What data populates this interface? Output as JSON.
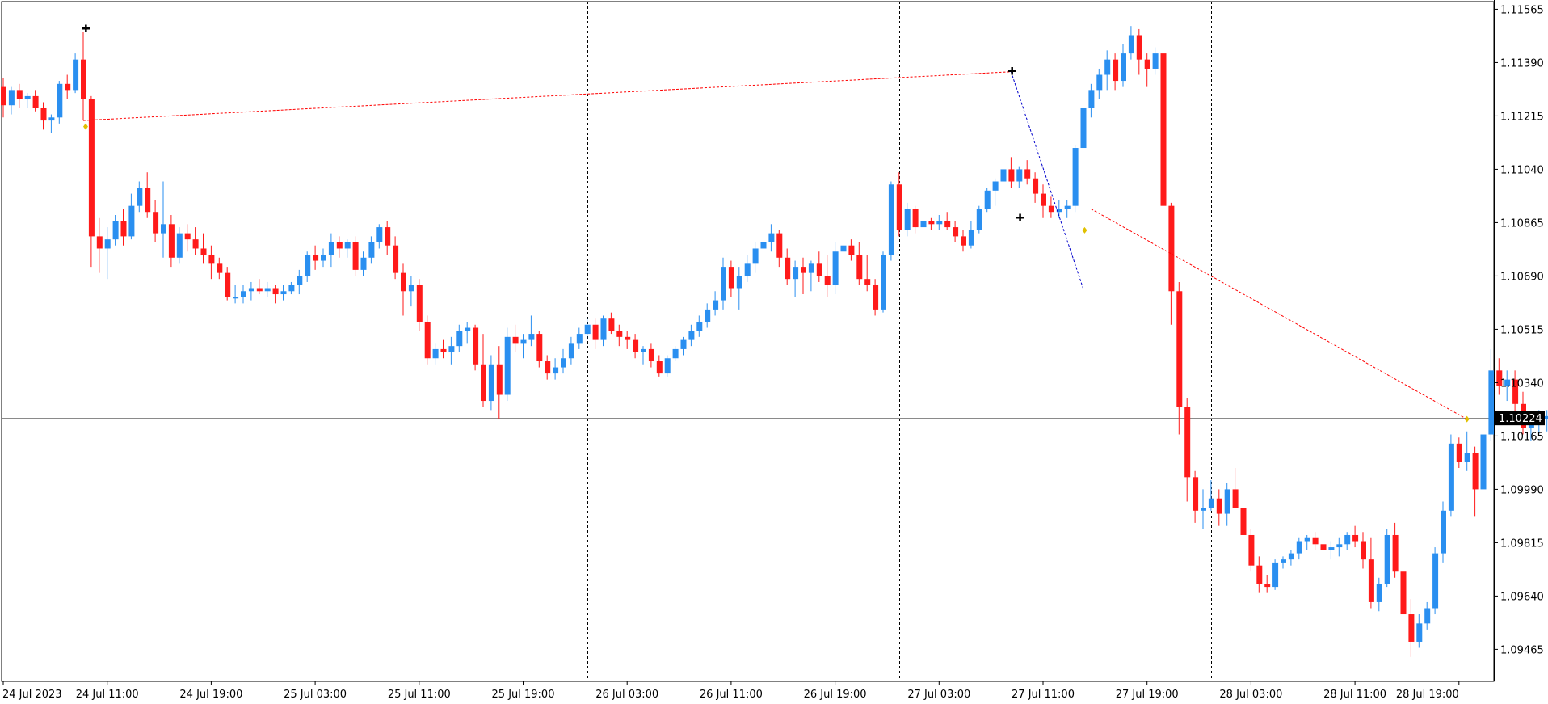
{
  "chart_data": {
    "type": "candlestick",
    "symbol_price_current": "1.10224",
    "ylim": [
      1.0936,
      1.1159
    ],
    "y_ticks": [
      "1.11565",
      "1.11390",
      "1.11215",
      "1.11040",
      "1.10865",
      "1.10690",
      "1.10515",
      "1.10340",
      "1.10165",
      "1.09990",
      "1.09815",
      "1.09640",
      "1.09465"
    ],
    "x_ticks": [
      "24 Jul 2023",
      "24 Jul 11:00",
      "24 Jul 19:00",
      "25 Jul 03:00",
      "25 Jul 11:00",
      "25 Jul 19:00",
      "26 Jul 03:00",
      "26 Jul 11:00",
      "26 Jul 19:00",
      "27 Jul 03:00",
      "27 Jul 11:00",
      "27 Jul 19:00",
      "28 Jul 03:00",
      "28 Jul 11:00",
      "28 Jul 19:00"
    ],
    "x_tick_index": [
      0,
      13,
      26,
      39,
      52,
      65,
      78,
      91,
      104,
      117,
      130,
      143,
      156,
      169,
      182
    ],
    "day_separators_index": [
      34,
      73,
      112,
      151
    ],
    "current_price": 1.10224,
    "colors": {
      "bull": "#2a8ff0",
      "bear": "#ff1a1a",
      "grid": "#000000",
      "trend_red": "#ff0000",
      "trend_blue": "#0000cc",
      "marker_yellow": "#e0c000",
      "price_label_bg": "#000000",
      "price_label_fg": "#ffffff"
    },
    "candles": [
      [
        1.1131,
        1.1134,
        1.1121,
        1.1125
      ],
      [
        1.1125,
        1.1131,
        1.1122,
        1.113
      ],
      [
        1.113,
        1.1132,
        1.1124,
        1.1127
      ],
      [
        1.1127,
        1.1129,
        1.1124,
        1.1128
      ],
      [
        1.1128,
        1.113,
        1.1123,
        1.1124
      ],
      [
        1.1124,
        1.1126,
        1.1117,
        1.112
      ],
      [
        1.112,
        1.1122,
        1.1116,
        1.1121
      ],
      [
        1.1121,
        1.1133,
        1.1119,
        1.1132
      ],
      [
        1.1132,
        1.1135,
        1.1127,
        1.113
      ],
      [
        1.113,
        1.1142,
        1.1129,
        1.114
      ],
      [
        1.114,
        1.1149,
        1.112,
        1.1127
      ],
      [
        1.1127,
        1.1128,
        1.1072,
        1.1082
      ],
      [
        1.1082,
        1.1088,
        1.107,
        1.1078
      ],
      [
        1.1078,
        1.1085,
        1.1068,
        1.1081
      ],
      [
        1.1081,
        1.1089,
        1.1079,
        1.1087
      ],
      [
        1.1087,
        1.1091,
        1.1079,
        1.1082
      ],
      [
        1.1082,
        1.1096,
        1.1081,
        1.1092
      ],
      [
        1.1092,
        1.11,
        1.109,
        1.1098
      ],
      [
        1.1098,
        1.1103,
        1.1088,
        1.109
      ],
      [
        1.109,
        1.1094,
        1.108,
        1.1083
      ],
      [
        1.1083,
        1.11,
        1.1075,
        1.1086
      ],
      [
        1.1086,
        1.1089,
        1.1072,
        1.1075
      ],
      [
        1.1075,
        1.1085,
        1.1073,
        1.1083
      ],
      [
        1.1083,
        1.1086,
        1.1077,
        1.1081
      ],
      [
        1.1081,
        1.1085,
        1.1076,
        1.1078
      ],
      [
        1.1078,
        1.1083,
        1.1073,
        1.1076
      ],
      [
        1.1076,
        1.1079,
        1.1068,
        1.1073
      ],
      [
        1.1073,
        1.1075,
        1.1068,
        1.107
      ],
      [
        1.107,
        1.1072,
        1.1061,
        1.1062
      ],
      [
        1.1062,
        1.1066,
        1.106,
        1.1062
      ],
      [
        1.1062,
        1.1066,
        1.106,
        1.1064
      ],
      [
        1.1064,
        1.1067,
        1.1061,
        1.1065
      ],
      [
        1.1065,
        1.1068,
        1.1063,
        1.1064
      ],
      [
        1.1064,
        1.1067,
        1.1062,
        1.1065
      ],
      [
        1.1065,
        1.1066,
        1.106,
        1.1063
      ],
      [
        1.1063,
        1.1066,
        1.1061,
        1.1064
      ],
      [
        1.1064,
        1.1067,
        1.1063,
        1.1066
      ],
      [
        1.1066,
        1.1071,
        1.1063,
        1.1069
      ],
      [
        1.1069,
        1.1077,
        1.1067,
        1.1076
      ],
      [
        1.1076,
        1.1079,
        1.1071,
        1.1074
      ],
      [
        1.1074,
        1.1078,
        1.1072,
        1.1076
      ],
      [
        1.1076,
        1.1083,
        1.1072,
        1.108
      ],
      [
        1.108,
        1.1082,
        1.1075,
        1.1078
      ],
      [
        1.1078,
        1.1081,
        1.1075,
        1.108
      ],
      [
        1.108,
        1.1082,
        1.1069,
        1.1071
      ],
      [
        1.1071,
        1.1077,
        1.1069,
        1.1075
      ],
      [
        1.1075,
        1.1082,
        1.1073,
        1.108
      ],
      [
        1.108,
        1.1086,
        1.1078,
        1.1085
      ],
      [
        1.1085,
        1.1087,
        1.1076,
        1.1079
      ],
      [
        1.1079,
        1.1082,
        1.1068,
        1.107
      ],
      [
        1.107,
        1.1073,
        1.1056,
        1.1064
      ],
      [
        1.1064,
        1.1069,
        1.1059,
        1.1066
      ],
      [
        1.1066,
        1.1068,
        1.1051,
        1.1054
      ],
      [
        1.1054,
        1.1056,
        1.104,
        1.1042
      ],
      [
        1.1042,
        1.1047,
        1.104,
        1.1045
      ],
      [
        1.1045,
        1.1048,
        1.1042,
        1.1044
      ],
      [
        1.1044,
        1.1049,
        1.104,
        1.1046
      ],
      [
        1.1046,
        1.1053,
        1.1044,
        1.1051
      ],
      [
        1.1051,
        1.1054,
        1.1047,
        1.1052
      ],
      [
        1.1052,
        1.1053,
        1.1038,
        1.104
      ],
      [
        1.104,
        1.105,
        1.1026,
        1.1028
      ],
      [
        1.1028,
        1.1043,
        1.1025,
        1.104
      ],
      [
        1.104,
        1.1046,
        1.1022,
        1.103
      ],
      [
        1.103,
        1.1052,
        1.1028,
        1.1049
      ],
      [
        1.1049,
        1.1053,
        1.1044,
        1.1047
      ],
      [
        1.1047,
        1.105,
        1.1042,
        1.1048
      ],
      [
        1.1048,
        1.1056,
        1.1046,
        1.105
      ],
      [
        1.105,
        1.1051,
        1.1039,
        1.1041
      ],
      [
        1.1041,
        1.1043,
        1.1035,
        1.1037
      ],
      [
        1.1037,
        1.1042,
        1.1035,
        1.1039
      ],
      [
        1.1039,
        1.1045,
        1.1037,
        1.1042
      ],
      [
        1.1042,
        1.1049,
        1.104,
        1.1047
      ],
      [
        1.1047,
        1.1052,
        1.1045,
        1.105
      ],
      [
        1.105,
        1.1055,
        1.1048,
        1.1053
      ],
      [
        1.1053,
        1.1055,
        1.1045,
        1.1048
      ],
      [
        1.1048,
        1.1056,
        1.1046,
        1.1055
      ],
      [
        1.1055,
        1.1057,
        1.105,
        1.1051
      ],
      [
        1.1051,
        1.1053,
        1.1046,
        1.1049
      ],
      [
        1.1049,
        1.1051,
        1.1045,
        1.1048
      ],
      [
        1.1048,
        1.105,
        1.1042,
        1.1044
      ],
      [
        1.1044,
        1.1046,
        1.104,
        1.1045
      ],
      [
        1.1045,
        1.1047,
        1.1039,
        1.1041
      ],
      [
        1.1041,
        1.1043,
        1.1036,
        1.1037
      ],
      [
        1.1037,
        1.1043,
        1.1036,
        1.1042
      ],
      [
        1.1042,
        1.1046,
        1.1041,
        1.1045
      ],
      [
        1.1045,
        1.1049,
        1.1043,
        1.1048
      ],
      [
        1.1048,
        1.1053,
        1.1046,
        1.1051
      ],
      [
        1.1051,
        1.1056,
        1.1049,
        1.1054
      ],
      [
        1.1054,
        1.106,
        1.1052,
        1.1058
      ],
      [
        1.1058,
        1.1064,
        1.1056,
        1.1061
      ],
      [
        1.1061,
        1.1075,
        1.1058,
        1.1072
      ],
      [
        1.1072,
        1.1074,
        1.1062,
        1.1065
      ],
      [
        1.1065,
        1.1072,
        1.1058,
        1.1069
      ],
      [
        1.1069,
        1.1076,
        1.1067,
        1.1073
      ],
      [
        1.1073,
        1.108,
        1.107,
        1.1078
      ],
      [
        1.1078,
        1.1081,
        1.1074,
        1.108
      ],
      [
        1.108,
        1.1086,
        1.1077,
        1.1083
      ],
      [
        1.1083,
        1.1084,
        1.1072,
        1.1075
      ],
      [
        1.1075,
        1.1078,
        1.1066,
        1.1068
      ],
      [
        1.1068,
        1.1074,
        1.1062,
        1.1072
      ],
      [
        1.1072,
        1.1075,
        1.1063,
        1.107
      ],
      [
        1.107,
        1.1074,
        1.1064,
        1.1073
      ],
      [
        1.1073,
        1.1077,
        1.1067,
        1.1069
      ],
      [
        1.1069,
        1.1076,
        1.1062,
        1.1066
      ],
      [
        1.1066,
        1.108,
        1.1063,
        1.1077
      ],
      [
        1.1077,
        1.1082,
        1.1074,
        1.1079
      ],
      [
        1.1079,
        1.1081,
        1.1074,
        1.1076
      ],
      [
        1.1076,
        1.108,
        1.1066,
        1.1068
      ],
      [
        1.1068,
        1.1076,
        1.1064,
        1.1066
      ],
      [
        1.1066,
        1.1068,
        1.1056,
        1.1058
      ],
      [
        1.1058,
        1.1077,
        1.1057,
        1.1076
      ],
      [
        1.1076,
        1.11,
        1.1074,
        1.1099
      ],
      [
        1.1099,
        1.1103,
        1.1082,
        1.1084
      ],
      [
        1.1084,
        1.1093,
        1.1082,
        1.1091
      ],
      [
        1.1091,
        1.1092,
        1.1083,
        1.1085
      ],
      [
        1.1085,
        1.1087,
        1.1076,
        1.1087
      ],
      [
        1.1087,
        1.1088,
        1.1084,
        1.1086
      ],
      [
        1.1086,
        1.1089,
        1.1084,
        1.1087
      ],
      [
        1.1087,
        1.109,
        1.1084,
        1.1085
      ],
      [
        1.1085,
        1.1087,
        1.108,
        1.1082
      ],
      [
        1.1082,
        1.1084,
        1.1077,
        1.1079
      ],
      [
        1.1079,
        1.1087,
        1.1078,
        1.1084
      ],
      [
        1.1084,
        1.1092,
        1.1083,
        1.1091
      ],
      [
        1.1091,
        1.1098,
        1.109,
        1.1097
      ],
      [
        1.1097,
        1.1101,
        1.1092,
        1.11
      ],
      [
        1.11,
        1.1109,
        1.1097,
        1.1104
      ],
      [
        1.1104,
        1.1108,
        1.1098,
        1.11
      ],
      [
        1.11,
        1.1105,
        1.1098,
        1.1104
      ],
      [
        1.1104,
        1.1107,
        1.1099,
        1.1101
      ],
      [
        1.1101,
        1.1103,
        1.1093,
        1.1096
      ],
      [
        1.1096,
        1.1099,
        1.1088,
        1.1092
      ],
      [
        1.1092,
        1.1095,
        1.1088,
        1.109
      ],
      [
        1.109,
        1.1094,
        1.1088,
        1.1091
      ],
      [
        1.1091,
        1.1094,
        1.1088,
        1.1092
      ],
      [
        1.1092,
        1.1112,
        1.109,
        1.1111
      ],
      [
        1.1111,
        1.1126,
        1.111,
        1.1124
      ],
      [
        1.1124,
        1.1132,
        1.1121,
        1.113
      ],
      [
        1.113,
        1.1137,
        1.1127,
        1.1135
      ],
      [
        1.1135,
        1.1143,
        1.113,
        1.114
      ],
      [
        1.114,
        1.1142,
        1.113,
        1.1133
      ],
      [
        1.1133,
        1.1145,
        1.1131,
        1.1142
      ],
      [
        1.1142,
        1.1151,
        1.114,
        1.1148
      ],
      [
        1.1148,
        1.115,
        1.1135,
        1.114
      ],
      [
        1.114,
        1.1142,
        1.1131,
        1.1137
      ],
      [
        1.1137,
        1.1144,
        1.1135,
        1.1142
      ],
      [
        1.1142,
        1.1144,
        1.1081,
        1.1092
      ],
      [
        1.1092,
        1.1093,
        1.1053,
        1.1064
      ],
      [
        1.1064,
        1.1067,
        1.1017,
        1.1026
      ],
      [
        1.1026,
        1.1029,
        1.0995,
        1.1003
      ],
      [
        1.1003,
        1.1005,
        1.0988,
        1.0992
      ],
      [
        1.0992,
        1.0999,
        1.0986,
        1.0993
      ],
      [
        1.0993,
        1.1002,
        1.0992,
        1.0996
      ],
      [
        1.0996,
        1.0999,
        1.0987,
        1.0991
      ],
      [
        1.0991,
        1.1001,
        1.0987,
        1.0999
      ],
      [
        1.0999,
        1.1006,
        1.0994,
        1.0993
      ],
      [
        1.0993,
        1.0994,
        1.0982,
        1.0984
      ],
      [
        1.0984,
        1.0986,
        1.0972,
        1.0974
      ],
      [
        1.0974,
        1.0977,
        1.0965,
        1.0968
      ],
      [
        1.0968,
        1.0971,
        1.0965,
        1.0967
      ],
      [
        1.0967,
        1.0976,
        1.0966,
        1.0975
      ],
      [
        1.0975,
        1.0977,
        1.0973,
        1.0976
      ],
      [
        1.0976,
        1.0979,
        1.0974,
        1.0978
      ],
      [
        1.0978,
        1.0983,
        1.0976,
        1.0982
      ],
      [
        1.0982,
        1.0984,
        1.0979,
        1.0983
      ],
      [
        1.0983,
        1.0985,
        1.0979,
        1.0981
      ],
      [
        1.0981,
        1.0983,
        1.0976,
        1.0979
      ],
      [
        1.0979,
        1.0982,
        1.0976,
        1.098
      ],
      [
        1.098,
        1.0983,
        1.0977,
        1.0981
      ],
      [
        1.0981,
        1.0985,
        1.0979,
        1.0984
      ],
      [
        1.0984,
        1.0987,
        1.098,
        1.0982
      ],
      [
        1.0982,
        1.0985,
        1.0973,
        1.0976
      ],
      [
        1.0976,
        1.0983,
        1.096,
        1.0962
      ],
      [
        1.0962,
        1.097,
        1.0959,
        1.0968
      ],
      [
        1.0968,
        1.0986,
        1.0967,
        1.0984
      ],
      [
        1.0984,
        1.0988,
        1.097,
        1.0972
      ],
      [
        1.0972,
        1.0978,
        1.0955,
        1.0958
      ],
      [
        1.0958,
        1.0963,
        1.0944,
        1.0949
      ],
      [
        1.0949,
        1.0958,
        1.0947,
        1.0955
      ],
      [
        1.0955,
        1.0962,
        1.0953,
        1.096
      ],
      [
        1.096,
        1.098,
        1.0958,
        1.0978
      ],
      [
        1.0978,
        1.0995,
        1.0975,
        1.0992
      ],
      [
        1.0992,
        1.1017,
        1.099,
        1.1014
      ],
      [
        1.1014,
        1.1016,
        1.1006,
        1.1008
      ],
      [
        1.1008,
        1.1018,
        1.1005,
        1.1011
      ],
      [
        1.1011,
        1.1013,
        1.099,
        1.0999
      ],
      [
        1.0999,
        1.1021,
        1.0997,
        1.1017
      ],
      [
        1.1017,
        1.1045,
        1.1015,
        1.1038
      ],
      [
        1.1038,
        1.1042,
        1.103,
        1.1033
      ],
      [
        1.1033,
        1.1038,
        1.1028,
        1.1035
      ],
      [
        1.1035,
        1.1038,
        1.1024,
        1.1027
      ],
      [
        1.1027,
        1.1031,
        1.1017,
        1.1019
      ],
      [
        1.1019,
        1.1024,
        1.1015,
        1.1021
      ],
      [
        1.1021,
        1.1025,
        1.1017,
        1.1022
      ],
      [
        1.1022,
        1.1025,
        1.1018,
        1.1023
      ]
    ]
  }
}
